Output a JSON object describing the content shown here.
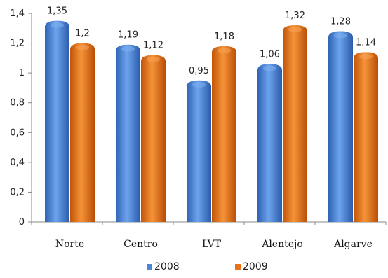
{
  "chart_data": {
    "type": "bar",
    "categories": [
      "Norte",
      "Centro",
      "LVT",
      "Alentejo",
      "Algarve"
    ],
    "series": [
      {
        "name": "2008",
        "values": [
          1.35,
          1.19,
          0.95,
          1.06,
          1.28
        ],
        "labels": [
          "1,35",
          "1,19",
          "0,95",
          "1,06",
          "1,28"
        ]
      },
      {
        "name": "2009",
        "values": [
          1.2,
          1.12,
          1.18,
          1.32,
          1.14
        ],
        "labels": [
          "1,2",
          "1,12",
          "1,18",
          "1,32",
          "1,14"
        ]
      }
    ],
    "ylim": [
      0,
      1.4
    ],
    "yticks": [
      "0",
      "0,2",
      "0,4",
      "0,6",
      "0,8",
      "1",
      "1,2",
      "1,4"
    ],
    "legend_position": "bottom",
    "colors": {
      "2008": "#4a86d8",
      "2009": "#e8731a"
    },
    "grid": false
  }
}
